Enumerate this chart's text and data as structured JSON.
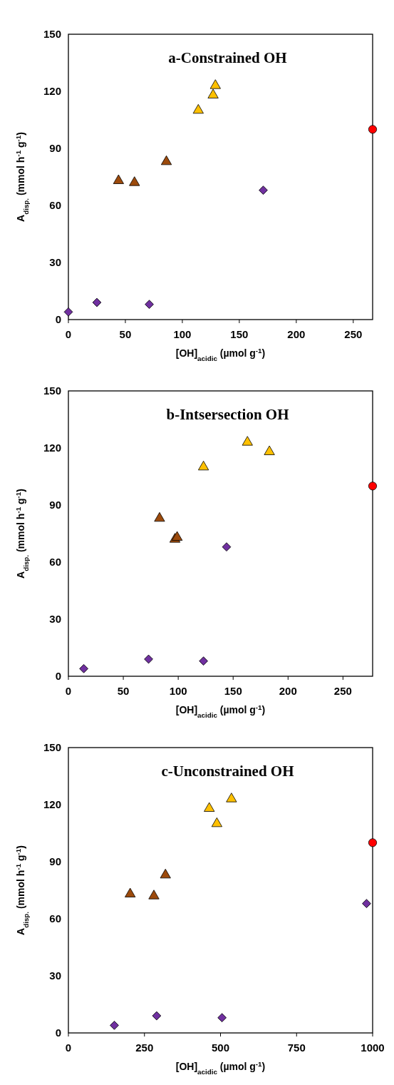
{
  "chart_data": [
    {
      "type": "scatter",
      "title": "a-Constrained OH",
      "xlabel": "[OH]$_{acidic}$ (µmol g$^{-1}$)",
      "ylabel": "A$_{disp.}$ (mmol  h$^{-1}$ g$^{-1}$)",
      "xlim": [
        0,
        267
      ],
      "xticks": [
        0,
        50,
        100,
        150,
        200,
        250
      ],
      "ylim": [
        0,
        150
      ],
      "yticks": [
        0,
        30,
        60,
        90,
        120,
        150
      ],
      "grid": false,
      "series": [
        {
          "color": "#7030a0",
          "marker": "diamond",
          "x": [
            0,
            25,
            71,
            171
          ],
          "values": [
            4,
            9,
            8,
            68
          ]
        },
        {
          "color": "#9c4a0c",
          "marker": "triangle",
          "x": [
            44,
            58,
            86
          ],
          "values": [
            73,
            72,
            83
          ]
        },
        {
          "color": "#ffc000",
          "marker": "triangle",
          "x": [
            114,
            127,
            129
          ],
          "values": [
            110,
            118,
            123
          ]
        },
        {
          "color": "#ff0000",
          "marker": "circle",
          "x": [
            267
          ],
          "values": [
            100
          ]
        }
      ]
    },
    {
      "type": "scatter",
      "title": "b-Intsersection OH",
      "xlabel": "[OH]$_{acidic}$ (µmol g$^{-1}$)",
      "ylabel": "A$_{disp.}$ (mmol  h$^{-1}$ g$^{-1}$)",
      "xlim": [
        0,
        277
      ],
      "xticks": [
        0,
        50,
        100,
        150,
        200,
        250
      ],
      "ylim": [
        0,
        150
      ],
      "yticks": [
        0,
        30,
        60,
        90,
        120,
        150
      ],
      "grid": false,
      "series": [
        {
          "color": "#7030a0",
          "marker": "diamond",
          "x": [
            14,
            73,
            123,
            144
          ],
          "values": [
            4,
            9,
            8,
            68
          ]
        },
        {
          "color": "#9c4a0c",
          "marker": "triangle",
          "x": [
            83,
            97,
            99
          ],
          "values": [
            83,
            72,
            73
          ]
        },
        {
          "color": "#ffc000",
          "marker": "triangle",
          "x": [
            123,
            163,
            183
          ],
          "values": [
            110,
            123,
            118
          ]
        },
        {
          "color": "#ff0000",
          "marker": "circle",
          "x": [
            277
          ],
          "values": [
            100
          ]
        }
      ]
    },
    {
      "type": "scatter",
      "title": "c-Unconstrained OH",
      "xlabel": "[OH]$_{acidic}$ (µmol g$^{-1}$)",
      "ylabel": "A$_{disp.}$ (mmol  h$^{-1}$ g$^{-1}$)",
      "xlim": [
        0,
        1000
      ],
      "xticks": [
        0,
        250,
        500,
        750,
        1000
      ],
      "ylim": [
        0,
        150
      ],
      "yticks": [
        0,
        30,
        60,
        90,
        120,
        150
      ],
      "grid": false,
      "series": [
        {
          "color": "#7030a0",
          "marker": "diamond",
          "x": [
            151,
            290,
            505,
            980
          ],
          "values": [
            4,
            9,
            8,
            68
          ]
        },
        {
          "color": "#9c4a0c",
          "marker": "triangle",
          "x": [
            203,
            281,
            319
          ],
          "values": [
            73,
            72,
            83
          ]
        },
        {
          "color": "#ffc000",
          "marker": "triangle",
          "x": [
            463,
            488,
            536
          ],
          "values": [
            118,
            110,
            123
          ]
        },
        {
          "color": "#ff0000",
          "marker": "circle",
          "x": [
            1000
          ],
          "values": [
            100
          ]
        }
      ]
    }
  ]
}
